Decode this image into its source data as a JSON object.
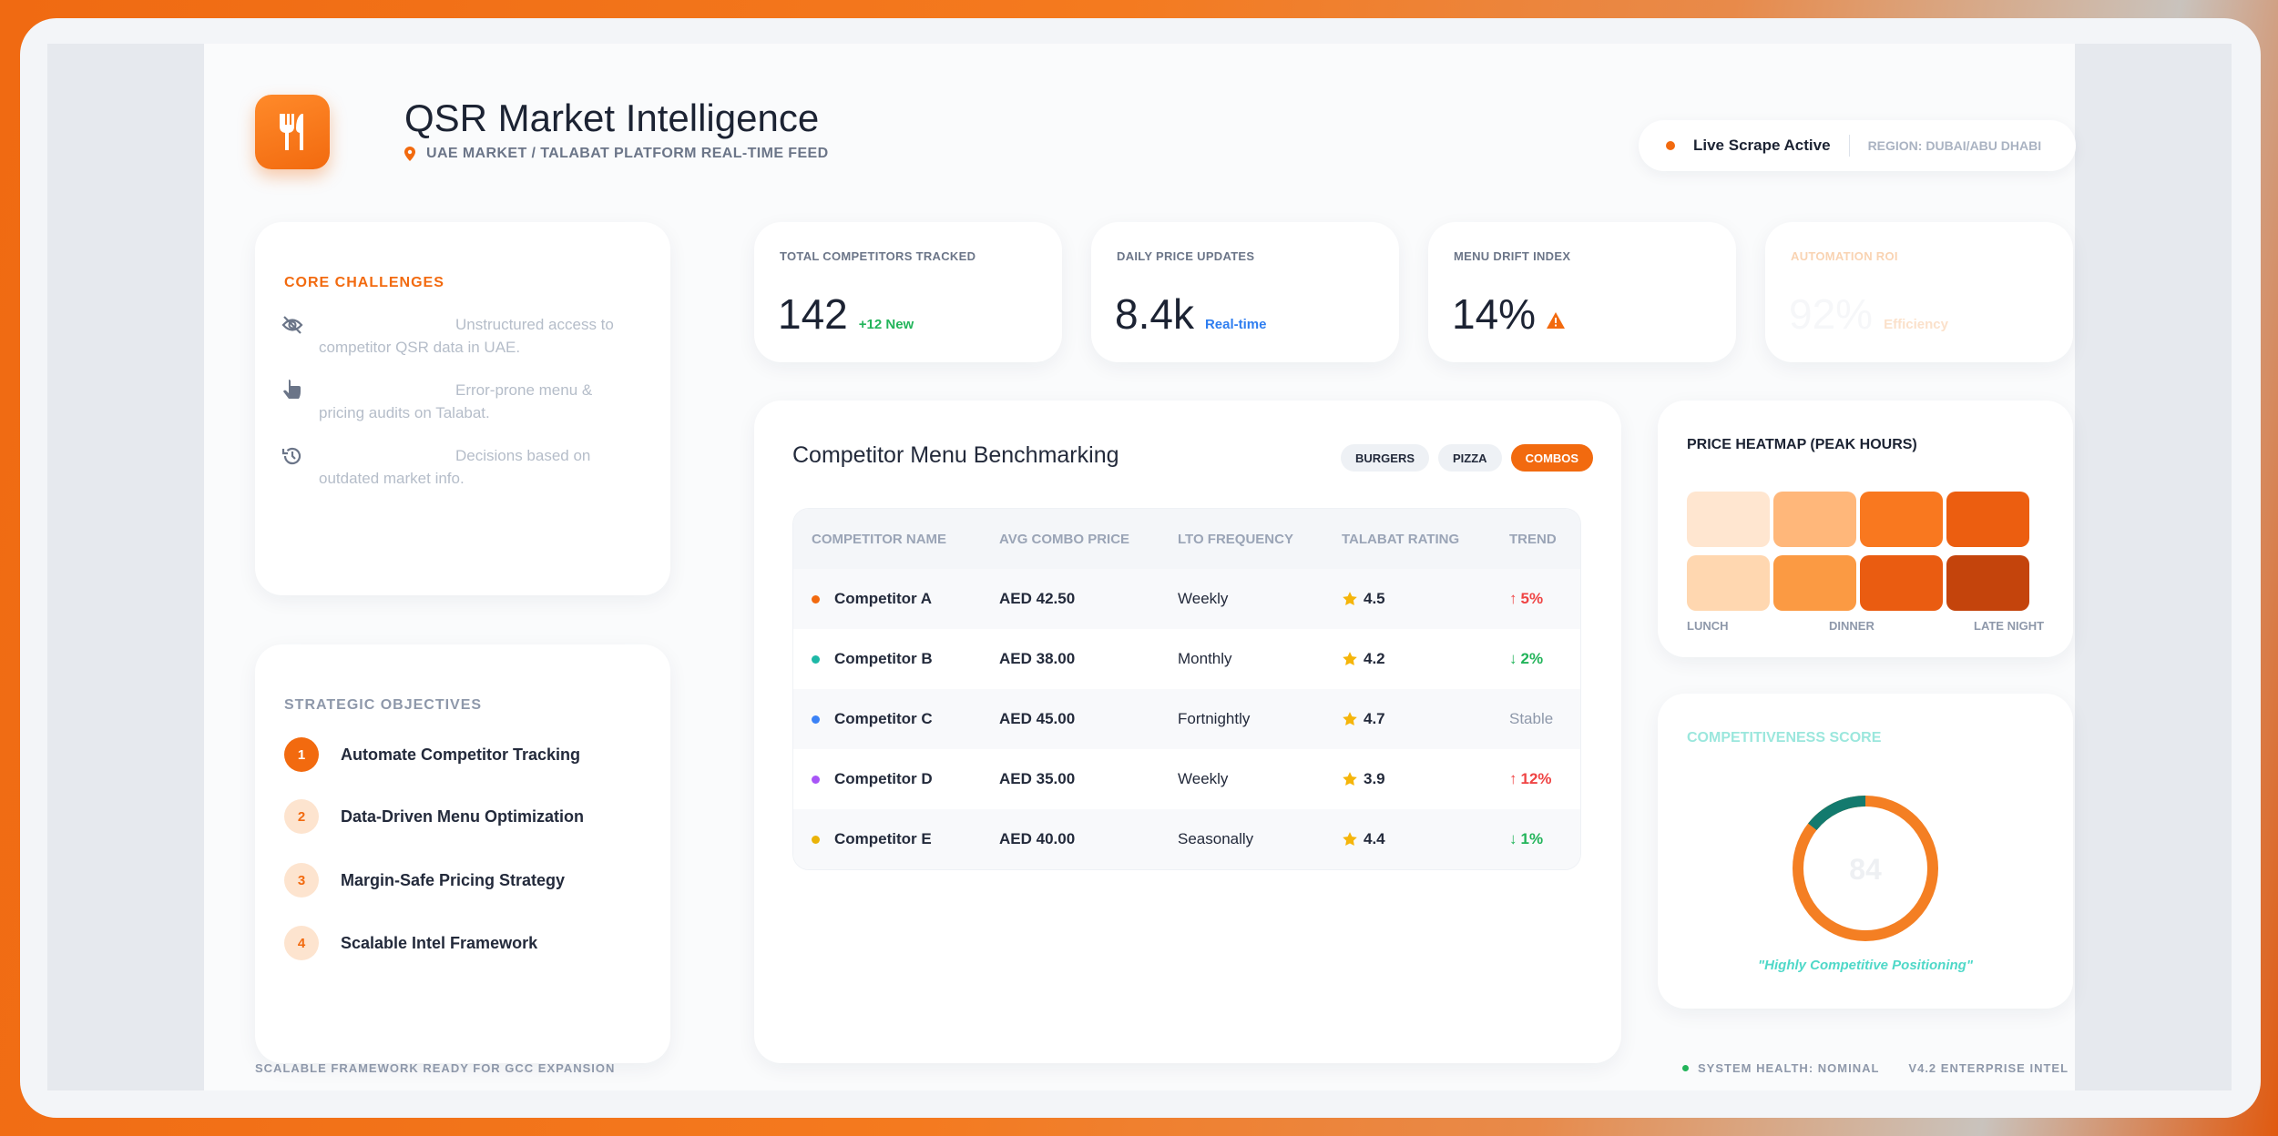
{
  "header": {
    "title": "QSR Market Intelligence",
    "subtitle": "UAE MARKET / TALABAT PLATFORM REAL-TIME FEED",
    "live_status": "Live Scrape Active",
    "region": "REGION: DUBAI/ABU DHABI",
    "logo_icon": "fork-knife-icon",
    "accent_color": "#f26a0f"
  },
  "challenges": {
    "heading": "CORE CHALLENGES",
    "items": [
      {
        "icon": "eye-slash-icon",
        "text_line1": "Unstructured access to",
        "text_line2": "competitor QSR data in UAE."
      },
      {
        "icon": "hand-pointer-icon",
        "text_line1": "Error-prone menu &",
        "text_line2": "pricing audits on Talabat."
      },
      {
        "icon": "history-icon",
        "text_line1": "Decisions based on",
        "text_line2": "outdated market info."
      }
    ]
  },
  "objectives": {
    "heading": "STRATEGIC OBJECTIVES",
    "items": [
      {
        "num": "1",
        "label": "Automate Competitor Tracking"
      },
      {
        "num": "2",
        "label": "Data-Driven Menu Optimization"
      },
      {
        "num": "3",
        "label": "Margin-Safe Pricing Strategy"
      },
      {
        "num": "4",
        "label": "Scalable Intel Framework"
      }
    ]
  },
  "kpis": [
    {
      "label": "TOTAL COMPETITORS TRACKED",
      "value": "142",
      "note": "+12 New",
      "note_color": "#22b45a"
    },
    {
      "label": "DAILY PRICE UPDATES",
      "value": "8.4k",
      "note": "Real-time",
      "note_color": "#2f7ef0"
    },
    {
      "label": "MENU DRIFT INDEX",
      "value": "14%",
      "note_icon": "warning-icon",
      "note_color": "#f26a0f"
    },
    {
      "label": "AUTOMATION ROI",
      "value": "92%",
      "note": "Efficiency",
      "note_color": "#f7c9a3"
    }
  ],
  "benchmark": {
    "title": "Competitor Menu Benchmarking",
    "filters": [
      "BURGERS",
      "PIZZA",
      "COMBOS"
    ],
    "active_filter": "COMBOS",
    "columns": [
      "COMPETITOR NAME",
      "AVG COMBO PRICE",
      "LTO FREQUENCY",
      "TALABAT RATING",
      "TREND"
    ],
    "rows": [
      {
        "name": "Competitor A",
        "dot": "#f26a0f",
        "price": "AED 42.50",
        "lto": "Weekly",
        "rating": "4.5",
        "trend": "5%",
        "trend_dir": "up"
      },
      {
        "name": "Competitor B",
        "dot": "#1db8a6",
        "price": "AED 38.00",
        "lto": "Monthly",
        "rating": "4.2",
        "trend": "2%",
        "trend_dir": "down"
      },
      {
        "name": "Competitor C",
        "dot": "#3b82f6",
        "price": "AED 45.00",
        "lto": "Fortnightly",
        "rating": "4.7",
        "trend": "Stable",
        "trend_dir": "flat"
      },
      {
        "name": "Competitor D",
        "dot": "#a855f7",
        "price": "AED 35.00",
        "lto": "Weekly",
        "rating": "3.9",
        "trend": "12%",
        "trend_dir": "up"
      },
      {
        "name": "Competitor E",
        "dot": "#eab308",
        "price": "AED 40.00",
        "lto": "Seasonally",
        "rating": "4.4",
        "trend": "1%",
        "trend_dir": "down"
      }
    ]
  },
  "heatmap": {
    "title": "PRICE HEATMAP (PEAK HOURS)",
    "colors": [
      [
        "#ffe6d0",
        "#ffb77a",
        "#f9781f",
        "#ec5e10"
      ],
      [
        "#ffd7b0",
        "#fb9a43",
        "#ea5c11",
        "#c4440c"
      ]
    ],
    "labels": [
      "LUNCH",
      "DINNER",
      "LATE NIGHT"
    ]
  },
  "score": {
    "title": "COMPETITIVENESS SCORE",
    "value": "84",
    "caption": "\"Highly Competitive Positioning\"",
    "fraction": 0.84,
    "ring_color": "#f47f23",
    "ring_accent": "#137a6e"
  },
  "footer": {
    "left": "SCALABLE FRAMEWORK READY FOR GCC EXPANSION",
    "health": "SYSTEM HEALTH: NOMINAL",
    "version": "V4.2 ENTERPRISE INTEL"
  }
}
